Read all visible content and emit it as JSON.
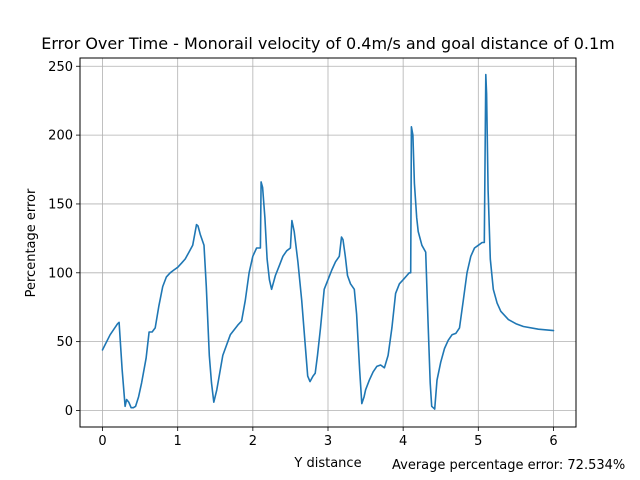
{
  "chart_data": {
    "type": "line",
    "title": "Error Over Time - Monorail velocity of 0.4m/s and goal distance of 0.1m",
    "xlabel": "Y distance",
    "ylabel": "Percentage error",
    "annotation": "Average percentage error: 72.534%",
    "xlim": [
      -0.3,
      6.3
    ],
    "ylim": [
      -12,
      256
    ],
    "xticks": [
      0,
      1,
      2,
      3,
      4,
      5,
      6
    ],
    "yticks": [
      0,
      50,
      100,
      150,
      200,
      250
    ],
    "grid": true,
    "line_color": "#1f77b4",
    "series": [
      {
        "x": [
          0.0,
          0.1,
          0.2,
          0.22,
          0.26,
          0.3,
          0.32,
          0.35,
          0.38,
          0.41,
          0.44,
          0.48,
          0.52,
          0.58,
          0.62,
          0.66,
          0.7,
          0.75,
          0.8,
          0.85,
          0.9,
          0.95,
          1.0,
          1.05,
          1.1,
          1.15,
          1.2,
          1.25,
          1.27,
          1.3,
          1.35,
          1.38,
          1.42,
          1.45,
          1.48,
          1.52,
          1.6,
          1.7,
          1.8,
          1.85,
          1.9,
          1.95,
          2.0,
          2.05,
          2.08,
          2.1,
          2.11,
          2.13,
          2.16,
          2.19,
          2.22,
          2.25,
          2.3,
          2.35,
          2.4,
          2.45,
          2.5,
          2.52,
          2.55,
          2.6,
          2.65,
          2.7,
          2.73,
          2.76,
          2.8,
          2.83,
          2.86,
          2.9,
          2.95,
          3.0,
          3.05,
          3.1,
          3.15,
          3.18,
          3.2,
          3.23,
          3.26,
          3.3,
          3.35,
          3.38,
          3.42,
          3.45,
          3.48,
          3.5,
          3.55,
          3.6,
          3.65,
          3.7,
          3.75,
          3.8,
          3.85,
          3.9,
          3.95,
          4.0,
          4.05,
          4.08,
          4.1,
          4.11,
          4.13,
          4.15,
          4.18,
          4.2,
          4.25,
          4.3,
          4.33,
          4.36,
          4.38,
          4.4,
          4.42,
          4.45,
          4.5,
          4.55,
          4.6,
          4.65,
          4.7,
          4.75,
          4.8,
          4.85,
          4.9,
          4.95,
          5.0,
          5.05,
          5.08,
          5.1,
          5.11,
          5.13,
          5.16,
          5.2,
          5.25,
          5.3,
          5.4,
          5.5,
          5.6,
          5.8,
          6.0
        ],
        "y": [
          44,
          55,
          63,
          64,
          30,
          3,
          8,
          6,
          2,
          2,
          3,
          10,
          20,
          38,
          57,
          57,
          60,
          76,
          90,
          97,
          100,
          102,
          104,
          107,
          110,
          115,
          120,
          135,
          134,
          128,
          120,
          90,
          40,
          20,
          6,
          15,
          40,
          55,
          62,
          65,
          80,
          100,
          112,
          118,
          118,
          118,
          166,
          162,
          140,
          110,
          95,
          88,
          98,
          105,
          112,
          116,
          118,
          138,
          130,
          108,
          80,
          45,
          25,
          21,
          25,
          27,
          40,
          60,
          88,
          95,
          102,
          108,
          112,
          126,
          124,
          112,
          98,
          92,
          88,
          70,
          30,
          5,
          10,
          15,
          22,
          28,
          32,
          33,
          31,
          40,
          60,
          85,
          92,
          95,
          98,
          100,
          100,
          206,
          200,
          165,
          140,
          130,
          120,
          115,
          65,
          20,
          3,
          2,
          1,
          22,
          35,
          45,
          51,
          55,
          56,
          60,
          80,
          100,
          112,
          118,
          120,
          122,
          122,
          244,
          230,
          160,
          110,
          88,
          78,
          72,
          66,
          63,
          61,
          59,
          58
        ]
      }
    ]
  }
}
